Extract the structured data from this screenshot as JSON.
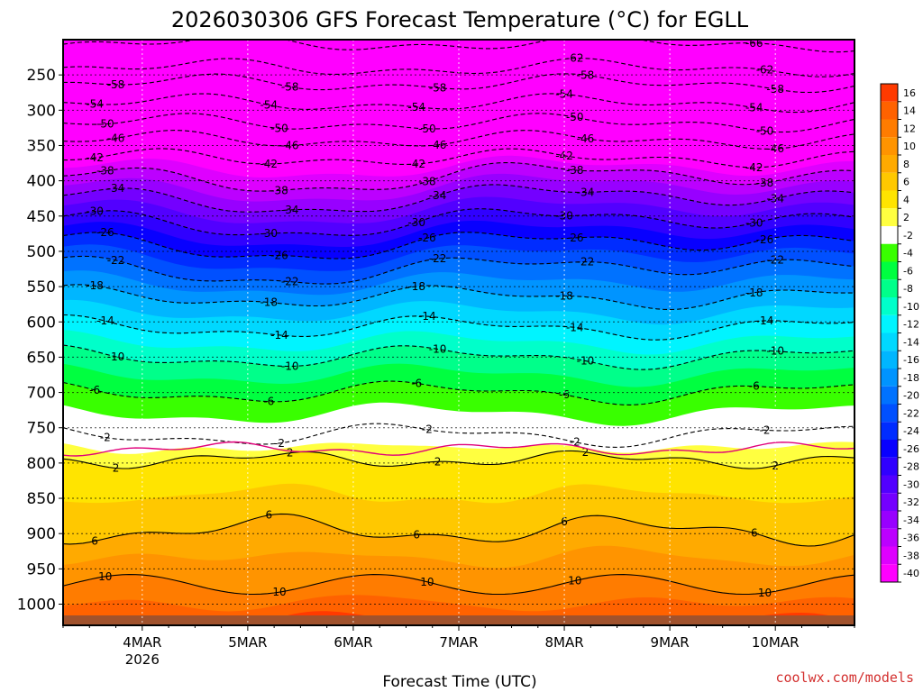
{
  "chart_data": {
    "type": "heatmap",
    "title": "2026030306 GFS Forecast Temperature (°C) for EGLL",
    "xlabel": "Forecast Time (UTC)",
    "ylabel": "",
    "credit": "coolwx.com/models",
    "y_axis": {
      "ticks": [
        250,
        300,
        350,
        400,
        450,
        500,
        550,
        600,
        650,
        700,
        750,
        800,
        850,
        900,
        950,
        1000
      ],
      "reversed": true,
      "range": [
        200,
        1030
      ]
    },
    "x_axis": {
      "ticks": [
        {
          "label": "4MAR",
          "sublabel": "2026"
        },
        {
          "label": "5MAR",
          "sublabel": ""
        },
        {
          "label": "6MAR",
          "sublabel": ""
        },
        {
          "label": "7MAR",
          "sublabel": ""
        },
        {
          "label": "8MAR",
          "sublabel": ""
        },
        {
          "label": "9MAR",
          "sublabel": ""
        },
        {
          "label": "10MAR",
          "sublabel": ""
        }
      ],
      "range_days": [
        3.25,
        10.75
      ]
    },
    "colorbar": {
      "labels": [
        16,
        14,
        12,
        10,
        8,
        6,
        4,
        2,
        -2,
        -4,
        -6,
        -8,
        -10,
        -12,
        -14,
        -16,
        -18,
        -20,
        -22,
        -24,
        -26,
        -28,
        -30,
        -32,
        -34,
        -36,
        -38,
        -40
      ],
      "colors": [
        "#ff3a00",
        "#ff6200",
        "#ff7c00",
        "#ff9400",
        "#ffaa00",
        "#ffc800",
        "#ffe400",
        "#ffff40",
        "#ffffff",
        "#39ff00",
        "#00ff40",
        "#00ff8a",
        "#00ffca",
        "#00f4ff",
        "#00d8ff",
        "#00b6ff",
        "#0094ff",
        "#0072ff",
        "#0050ff",
        "#002cff",
        "#0800ff",
        "#3000ff",
        "#5200ff",
        "#7400ff",
        "#9800ff",
        "#bc00ff",
        "#de00ff",
        "#ff00ff"
      ]
    },
    "contour_levels": [
      {
        "value": -66,
        "label": "-66"
      },
      {
        "value": -62,
        "label": "-62"
      },
      {
        "value": -58,
        "label": "-58"
      },
      {
        "value": -54,
        "label": "-54"
      },
      {
        "value": -50,
        "label": "-50"
      },
      {
        "value": -46,
        "label": "-46"
      },
      {
        "value": -42,
        "label": "-42"
      },
      {
        "value": -38,
        "label": "-38"
      },
      {
        "value": -34,
        "label": "-34"
      },
      {
        "value": -30,
        "label": "-30"
      },
      {
        "value": -26,
        "label": "-26"
      },
      {
        "value": -22,
        "label": "-22"
      },
      {
        "value": -18,
        "label": "-18"
      },
      {
        "value": -14,
        "label": "-14"
      },
      {
        "value": -10,
        "label": "-10"
      },
      {
        "value": -6,
        "label": "-6"
      },
      {
        "value": -2,
        "label": "-2"
      },
      {
        "value": 2,
        "label": "2"
      },
      {
        "value": 6,
        "label": "6"
      },
      {
        "value": 10,
        "label": "10"
      }
    ],
    "freezing_line_color": "#e0007a",
    "ground_color": "#a0522d"
  }
}
